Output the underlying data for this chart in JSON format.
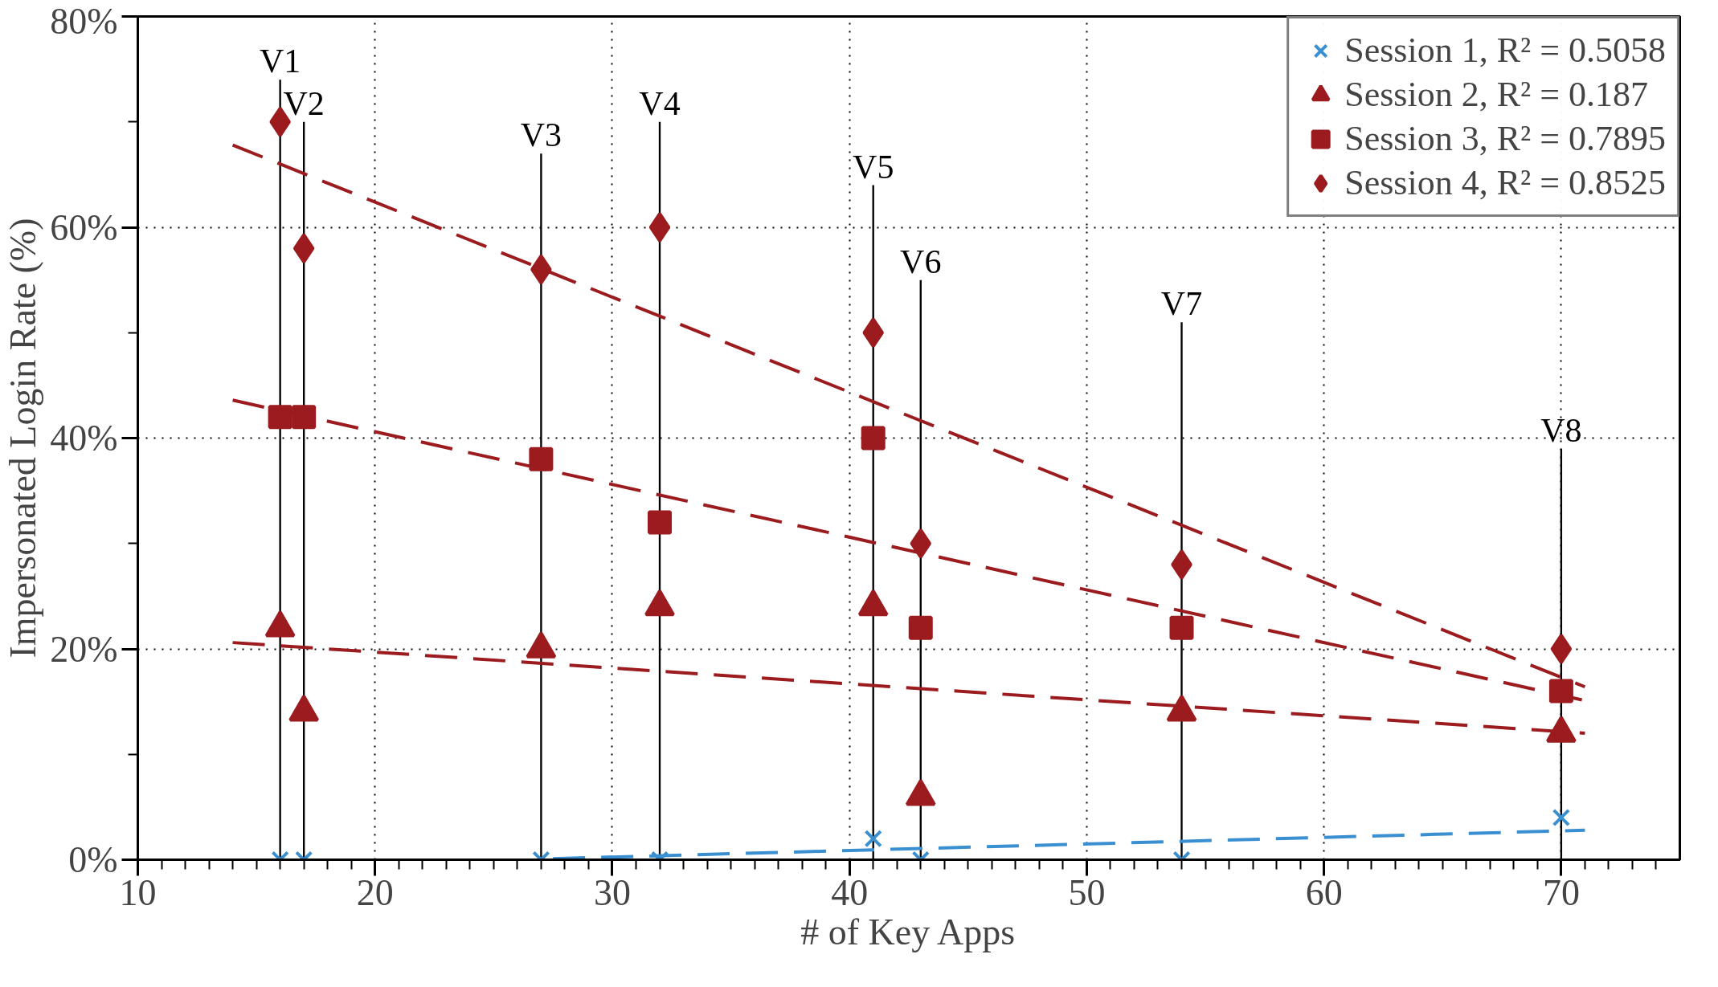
{
  "chart_data": {
    "type": "scatter",
    "xlabel": "# of Key Apps",
    "ylabel": "Impersonated Login Rate (%)",
    "x": [
      16,
      17,
      27,
      32,
      41,
      43,
      54,
      70
    ],
    "series": [
      {
        "type": "bar",
        "color": "#000000",
        "values": [
          74,
          70,
          67,
          70,
          64,
          55,
          51,
          39
        ],
        "value_labels": [
          "V1",
          "V2",
          "V3",
          "V4",
          "V5",
          "V6",
          "V7",
          "V8"
        ]
      },
      {
        "name": "Session 1, R² = 0.5058",
        "color": "#3a8fd0",
        "marker": "cross",
        "values": [
          0,
          0,
          0,
          0,
          2,
          0,
          0,
          4
        ]
      },
      {
        "name": "Session 2, R² = 0.187",
        "color": "#9b1b1e",
        "marker": "triangle",
        "values": [
          22,
          14,
          20,
          24,
          24,
          6,
          14,
          12
        ]
      },
      {
        "name": "Session 3, R² = 0.7895",
        "color": "#9b1b1e",
        "marker": "square",
        "values": [
          42,
          42,
          38,
          32,
          40,
          22,
          22,
          16
        ]
      },
      {
        "name": "Session 4, R² = 0.8525",
        "color": "#9b1b1e",
        "marker": "diamond",
        "values": [
          70,
          58,
          56,
          60,
          50,
          30,
          28,
          20
        ]
      },
      {
        "type": "line",
        "color": "#3a8fd0",
        "line_style": "dashed",
        "x": [
          27.5,
          71
        ],
        "values": [
          0.1,
          2.8
        ]
      },
      {
        "type": "line",
        "color": "#9b1b1e",
        "line_style": "dashed",
        "x": [
          14,
          71
        ],
        "values": [
          20.6,
          12.0
        ]
      },
      {
        "type": "line",
        "color": "#9b1b1e",
        "line_style": "dashed",
        "x": [
          14,
          71
        ],
        "values": [
          43.6,
          15.1
        ]
      },
      {
        "type": "line",
        "color": "#9b1b1e",
        "line_style": "dashed",
        "x": [
          14,
          71
        ],
        "values": [
          67.8,
          16.4
        ]
      }
    ],
    "xlim": [
      10,
      75
    ],
    "ylim": [
      0,
      80
    ],
    "xticks": [
      10,
      20,
      30,
      40,
      50,
      60,
      70
    ],
    "yticks": [
      {
        "value": 0,
        "label": "0%"
      },
      {
        "value": 20,
        "label": "20%"
      },
      {
        "value": 40,
        "label": "40%"
      },
      {
        "value": 60,
        "label": "60%"
      },
      {
        "value": 80,
        "label": "80%"
      }
    ],
    "grid": true,
    "legend": "top right"
  }
}
